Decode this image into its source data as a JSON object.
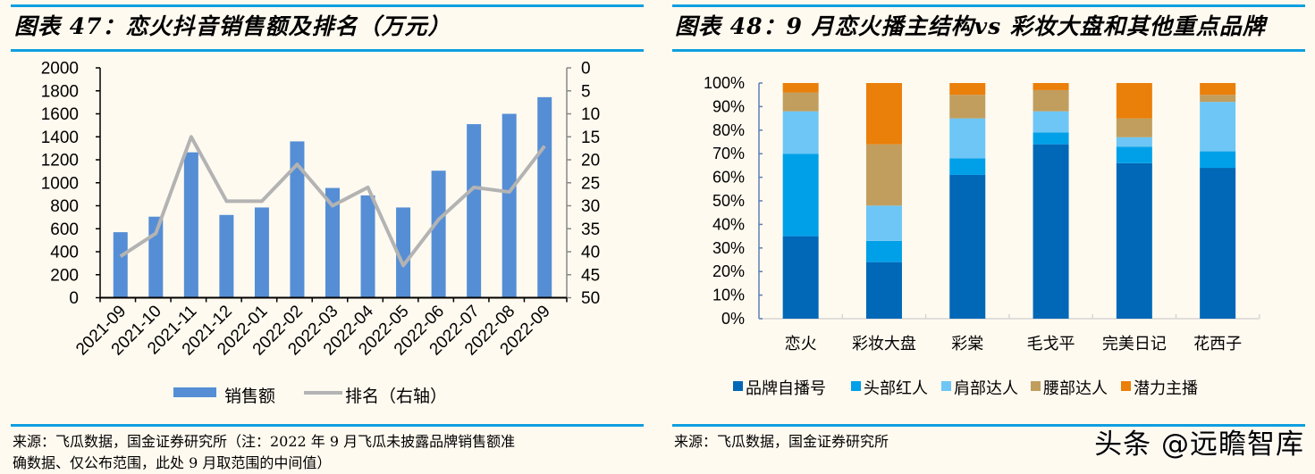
{
  "left_panel": {
    "title": "图表 47：恋火抖音销售额及排名（万元）",
    "source_line1": "来源：飞瓜数据，国金证券研究所（注：2022 年 9 月飞瓜未披露品牌销售额准",
    "source_line2": "确数据、仅公布范围，此处 9 月取范围的中间值）"
  },
  "right_panel": {
    "title": "图表 48：9 月恋火播主结构vs 彩妆大盘和其他重点品牌",
    "source": "来源：飞瓜数据，国金证券研究所"
  },
  "watermark": "头条 @远瞻智库",
  "colors": {
    "rule": "#0f9ee0",
    "bar": "#558ed5",
    "line": "#b3b3b3",
    "seg1": "#0068b7",
    "seg2": "#00a0e9",
    "seg3": "#6dc6f5",
    "seg4": "#c19e5e",
    "seg5": "#ea7f0a"
  },
  "chart_data": [
    {
      "type": "bar+line",
      "title": "恋火抖音销售额及排名（万元）",
      "categories": [
        "2021-09",
        "2021-10",
        "2021-11",
        "2021-12",
        "2022-01",
        "2022-02",
        "2022-03",
        "2022-04",
        "2022-05",
        "2022-06",
        "2022-07",
        "2022-08",
        "2022-09"
      ],
      "series": [
        {
          "name": "销售额",
          "type": "bar",
          "axis": "left",
          "values": [
            570,
            705,
            1265,
            720,
            785,
            1360,
            955,
            890,
            785,
            1105,
            1510,
            1600,
            1745
          ]
        },
        {
          "name": "排名（右轴）",
          "type": "line",
          "axis": "right",
          "values": [
            41,
            36,
            15,
            29,
            29,
            21,
            30,
            26,
            43,
            33,
            26,
            27,
            17
          ]
        }
      ],
      "left_axis": {
        "ylim": [
          0,
          2000
        ],
        "ticks": [
          "0",
          "200",
          "400",
          "600",
          "800",
          "1000",
          "1200",
          "1400",
          "1600",
          "1800",
          "2000"
        ]
      },
      "right_axis": {
        "ylim": [
          0,
          50
        ],
        "inverted": true,
        "ticks": [
          "0",
          "5",
          "10",
          "15",
          "20",
          "25",
          "30",
          "35",
          "40",
          "45",
          "50"
        ]
      },
      "legend": {
        "placement": "bottom",
        "items": [
          "销售额",
          "排名（右轴）"
        ]
      }
    },
    {
      "type": "stacked-bar",
      "title": "9 月恋火播主结构vs 彩妆大盘和其他重点品牌",
      "categories": [
        "恋火",
        "彩妆大盘",
        "彩棠",
        "毛戈平",
        "完美日记",
        "花西子"
      ],
      "series": [
        {
          "name": "品牌自播号",
          "values": [
            35,
            24,
            61,
            74,
            66,
            64
          ]
        },
        {
          "name": "头部红人",
          "values": [
            35,
            9,
            7,
            5,
            7,
            7
          ]
        },
        {
          "name": "肩部达人",
          "values": [
            18,
            15,
            17,
            9,
            4,
            21
          ]
        },
        {
          "name": "腰部达人",
          "values": [
            8,
            26,
            10,
            9,
            8,
            3
          ]
        },
        {
          "name": "潜力主播",
          "values": [
            4,
            26,
            5,
            3,
            15,
            5
          ]
        }
      ],
      "ylim": [
        0,
        100
      ],
      "yticks": [
        "0%",
        "10%",
        "20%",
        "30%",
        "40%",
        "50%",
        "60%",
        "70%",
        "80%",
        "90%",
        "100%"
      ],
      "legend": {
        "placement": "bottom",
        "items": [
          "品牌自播号",
          "头部红人",
          "肩部达人",
          "腰部达人",
          "潜力主播"
        ]
      }
    }
  ]
}
